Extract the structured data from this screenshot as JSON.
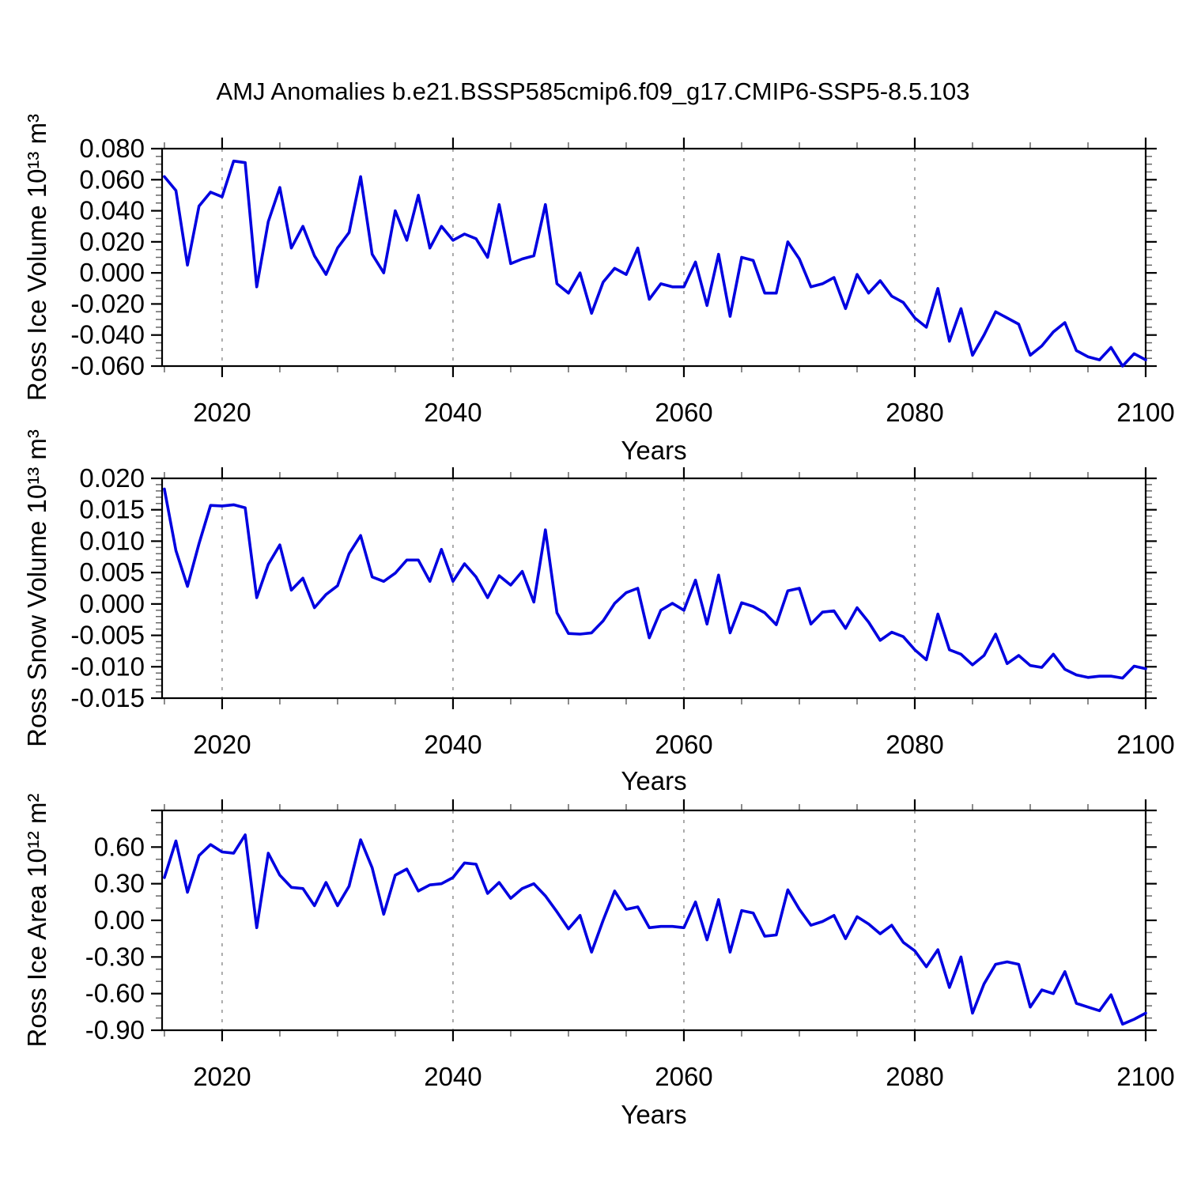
{
  "title": "AMJ Anomalies b.e21.BSSP585cmip6.f09_g17.CMIP6-SSP5-8.5.103",
  "line_color": "#0000e0",
  "grid_color": "#7f7f7f",
  "axis_color": "#000000",
  "chart_data": [
    {
      "type": "line",
      "series_name": "Ross Ice Volume anomaly",
      "xlabel": "Years",
      "ylabel": "Ross Ice Volume 10¹³ m³",
      "x_start": 2015,
      "x_step": 1,
      "xlim": [
        2014.8,
        2100
      ],
      "ylim": [
        -0.06,
        0.08
      ],
      "xtick_values": [
        2020,
        2040,
        2060,
        2080,
        2100
      ],
      "xtick_labels": [
        "2020",
        "2040",
        "2060",
        "2080",
        "2100"
      ],
      "xtick_minor_step": 5,
      "ytick_values": [
        0.08,
        0.06,
        0.04,
        0.02,
        0.0,
        -0.02,
        -0.04,
        -0.06
      ],
      "ytick_labels": [
        "0.080",
        "0.060",
        "0.040",
        "0.020",
        "0.000",
        "-0.020",
        "-0.040",
        "-0.060"
      ],
      "ytick_values_unlabeled": [],
      "ytick_minor_step": 0.005,
      "gridline_x_values": [
        2020,
        2040,
        2060,
        2080
      ],
      "grid_on": true,
      "legend": "none",
      "values": [
        0.062,
        0.053,
        0.005,
        0.043,
        0.052,
        0.049,
        0.072,
        0.071,
        -0.009,
        0.033,
        0.055,
        0.016,
        0.03,
        0.011,
        -0.001,
        0.016,
        0.026,
        0.062,
        0.012,
        0.0,
        0.04,
        0.021,
        0.05,
        0.016,
        0.03,
        0.021,
        0.025,
        0.022,
        0.01,
        0.044,
        0.006,
        0.009,
        0.011,
        0.044,
        -0.007,
        -0.013,
        0.0,
        -0.026,
        -0.006,
        0.003,
        -0.001,
        0.016,
        -0.017,
        -0.007,
        -0.009,
        -0.009,
        0.007,
        -0.021,
        0.012,
        -0.028,
        0.01,
        0.008,
        -0.013,
        -0.013,
        0.02,
        0.009,
        -0.009,
        -0.007,
        -0.003,
        -0.023,
        -0.001,
        -0.013,
        -0.005,
        -0.015,
        -0.019,
        -0.029,
        -0.035,
        -0.01,
        -0.044,
        -0.023,
        -0.053,
        -0.04,
        -0.025,
        -0.029,
        -0.033,
        -0.053,
        -0.047,
        -0.038,
        -0.032,
        -0.05,
        -0.054,
        -0.056,
        -0.048,
        -0.06,
        -0.052,
        -0.056
      ]
    },
    {
      "type": "line",
      "series_name": "Ross Snow Volume anomaly",
      "xlabel": "Years",
      "ylabel": "Ross Snow Volume 10¹³ m³",
      "x_start": 2015,
      "x_step": 1,
      "xlim": [
        2014.8,
        2100
      ],
      "ylim": [
        -0.015,
        0.02
      ],
      "xtick_values": [
        2020,
        2040,
        2060,
        2080,
        2100
      ],
      "xtick_labels": [
        "2020",
        "2040",
        "2060",
        "2080",
        "2100"
      ],
      "xtick_minor_step": 5,
      "ytick_values": [
        0.02,
        0.015,
        0.01,
        0.005,
        0.0,
        -0.005,
        -0.01,
        -0.015
      ],
      "ytick_labels": [
        "0.020",
        "0.015",
        "0.010",
        "0.005",
        "0.000",
        "-0.005",
        "-0.010",
        "-0.015"
      ],
      "ytick_values_unlabeled": [],
      "ytick_minor_step": 0.001,
      "gridline_x_values": [
        2020,
        2040,
        2060,
        2080
      ],
      "grid_on": true,
      "legend": "none",
      "values": [
        0.0183,
        0.0085,
        0.0028,
        0.0096,
        0.0157,
        0.0156,
        0.0158,
        0.0153,
        0.001,
        0.0063,
        0.0094,
        0.0022,
        0.0041,
        -0.0006,
        0.0015,
        0.0029,
        0.008,
        0.0109,
        0.0043,
        0.0036,
        0.0049,
        0.007,
        0.007,
        0.0036,
        0.0087,
        0.0036,
        0.0064,
        0.0043,
        0.001,
        0.0045,
        0.003,
        0.0052,
        0.0003,
        0.0118,
        -0.0014,
        -0.0047,
        -0.0048,
        -0.0046,
        -0.0027,
        0.0001,
        0.0018,
        0.0025,
        -0.0054,
        -0.001,
        0.0001,
        -0.001,
        0.0038,
        -0.0032,
        0.0046,
        -0.0046,
        0.0002,
        -0.0004,
        -0.0014,
        -0.0033,
        0.0021,
        0.0025,
        -0.0032,
        -0.0013,
        -0.0011,
        -0.0039,
        -0.0006,
        -0.0029,
        -0.0058,
        -0.0045,
        -0.0052,
        -0.0073,
        -0.0089,
        -0.0016,
        -0.0073,
        -0.008,
        -0.0097,
        -0.0082,
        -0.0048,
        -0.0095,
        -0.0082,
        -0.0098,
        -0.0101,
        -0.008,
        -0.0104,
        -0.0113,
        -0.0117,
        -0.0115,
        -0.0115,
        -0.0118,
        -0.0099,
        -0.0103
      ]
    },
    {
      "type": "line",
      "series_name": "Ross Ice Area anomaly",
      "xlabel": "Years",
      "ylabel": "Ross Ice Area 10¹² m²",
      "x_start": 2015,
      "x_step": 1,
      "xlim": [
        2014.8,
        2100
      ],
      "ylim": [
        -0.9,
        0.9
      ],
      "xtick_values": [
        2020,
        2040,
        2060,
        2080,
        2100
      ],
      "xtick_labels": [
        "2020",
        "2040",
        "2060",
        "2080",
        "2100"
      ],
      "xtick_minor_step": 5,
      "ytick_values": [
        0.6,
        0.3,
        0.0,
        -0.3,
        -0.6,
        -0.9
      ],
      "ytick_labels": [
        "0.60",
        "0.30",
        "0.00",
        "-0.30",
        "-0.60",
        "-0.90"
      ],
      "ytick_values_unlabeled": [
        0.9
      ],
      "ytick_minor_step": 0.1,
      "gridline_x_values": [
        2020,
        2040,
        2060,
        2080
      ],
      "grid_on": true,
      "legend": "none",
      "values": [
        0.35,
        0.65,
        0.23,
        0.53,
        0.62,
        0.56,
        0.55,
        0.7,
        -0.06,
        0.55,
        0.37,
        0.27,
        0.26,
        0.12,
        0.31,
        0.12,
        0.28,
        0.66,
        0.43,
        0.05,
        0.37,
        0.42,
        0.24,
        0.29,
        0.3,
        0.35,
        0.47,
        0.46,
        0.22,
        0.31,
        0.18,
        0.26,
        0.3,
        0.2,
        0.07,
        -0.07,
        0.04,
        -0.26,
        0.0,
        0.24,
        0.09,
        0.11,
        -0.06,
        -0.05,
        -0.05,
        -0.06,
        0.15,
        -0.16,
        0.17,
        -0.26,
        0.08,
        0.06,
        -0.13,
        -0.12,
        0.25,
        0.09,
        -0.04,
        -0.01,
        0.04,
        -0.15,
        0.03,
        -0.03,
        -0.11,
        -0.04,
        -0.18,
        -0.25,
        -0.38,
        -0.24,
        -0.55,
        -0.3,
        -0.76,
        -0.52,
        -0.36,
        -0.34,
        -0.36,
        -0.71,
        -0.57,
        -0.6,
        -0.42,
        -0.68,
        -0.71,
        -0.74,
        -0.61,
        -0.85,
        -0.81,
        -0.76
      ]
    }
  ]
}
